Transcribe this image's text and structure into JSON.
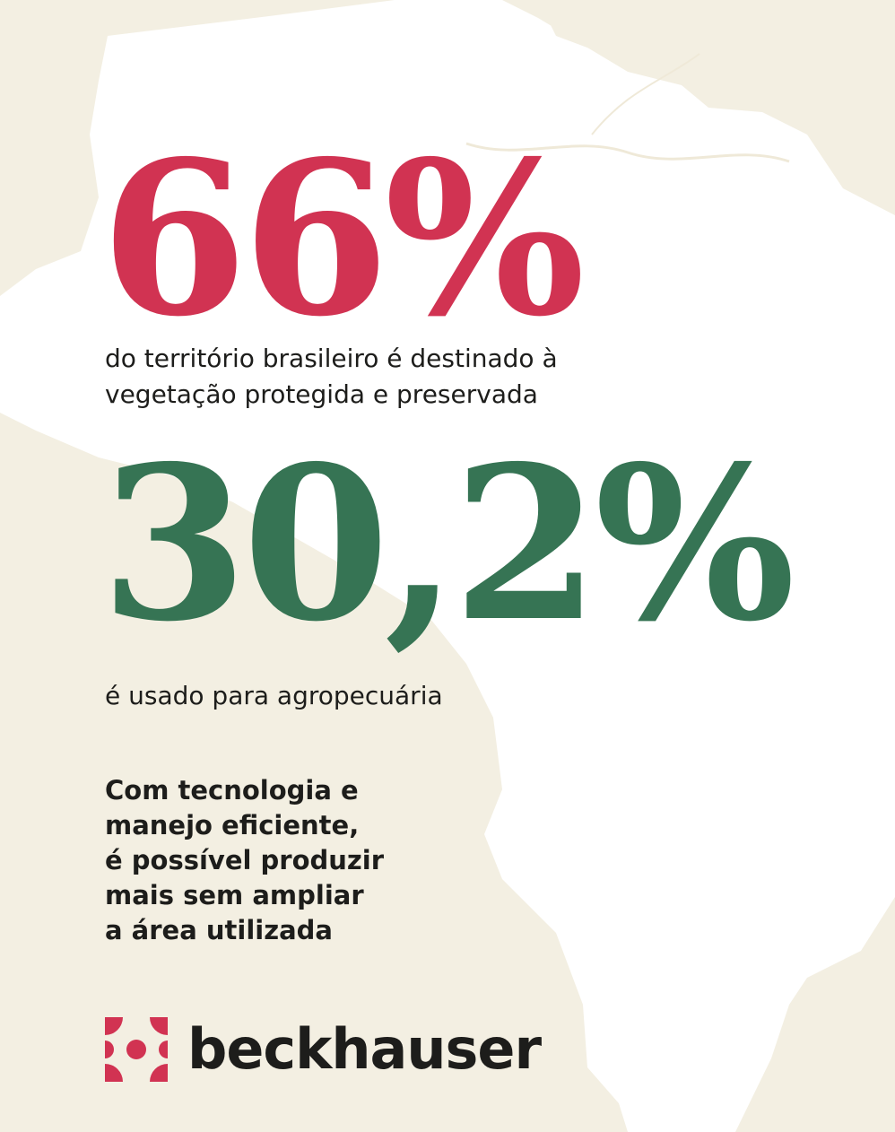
{
  "stats": [
    {
      "value": "66%",
      "color": "#d13352",
      "caption": "do território brasileiro é destinado à vegetação protegida e preservada"
    },
    {
      "value": "30,2%",
      "color": "#367454",
      "caption": "é usado para agropecuária"
    }
  ],
  "claim_lines": [
    "Com tecnologia e",
    "manejo eficiente,",
    "é possível produzir",
    "mais sem ampliar",
    "a área utilizada"
  ],
  "brand": {
    "name": "beckhauser",
    "logo_color": "#d13352"
  },
  "colors": {
    "background": "#f3efe2",
    "map_land": "#ffffff",
    "text": "#1d1d1b"
  }
}
